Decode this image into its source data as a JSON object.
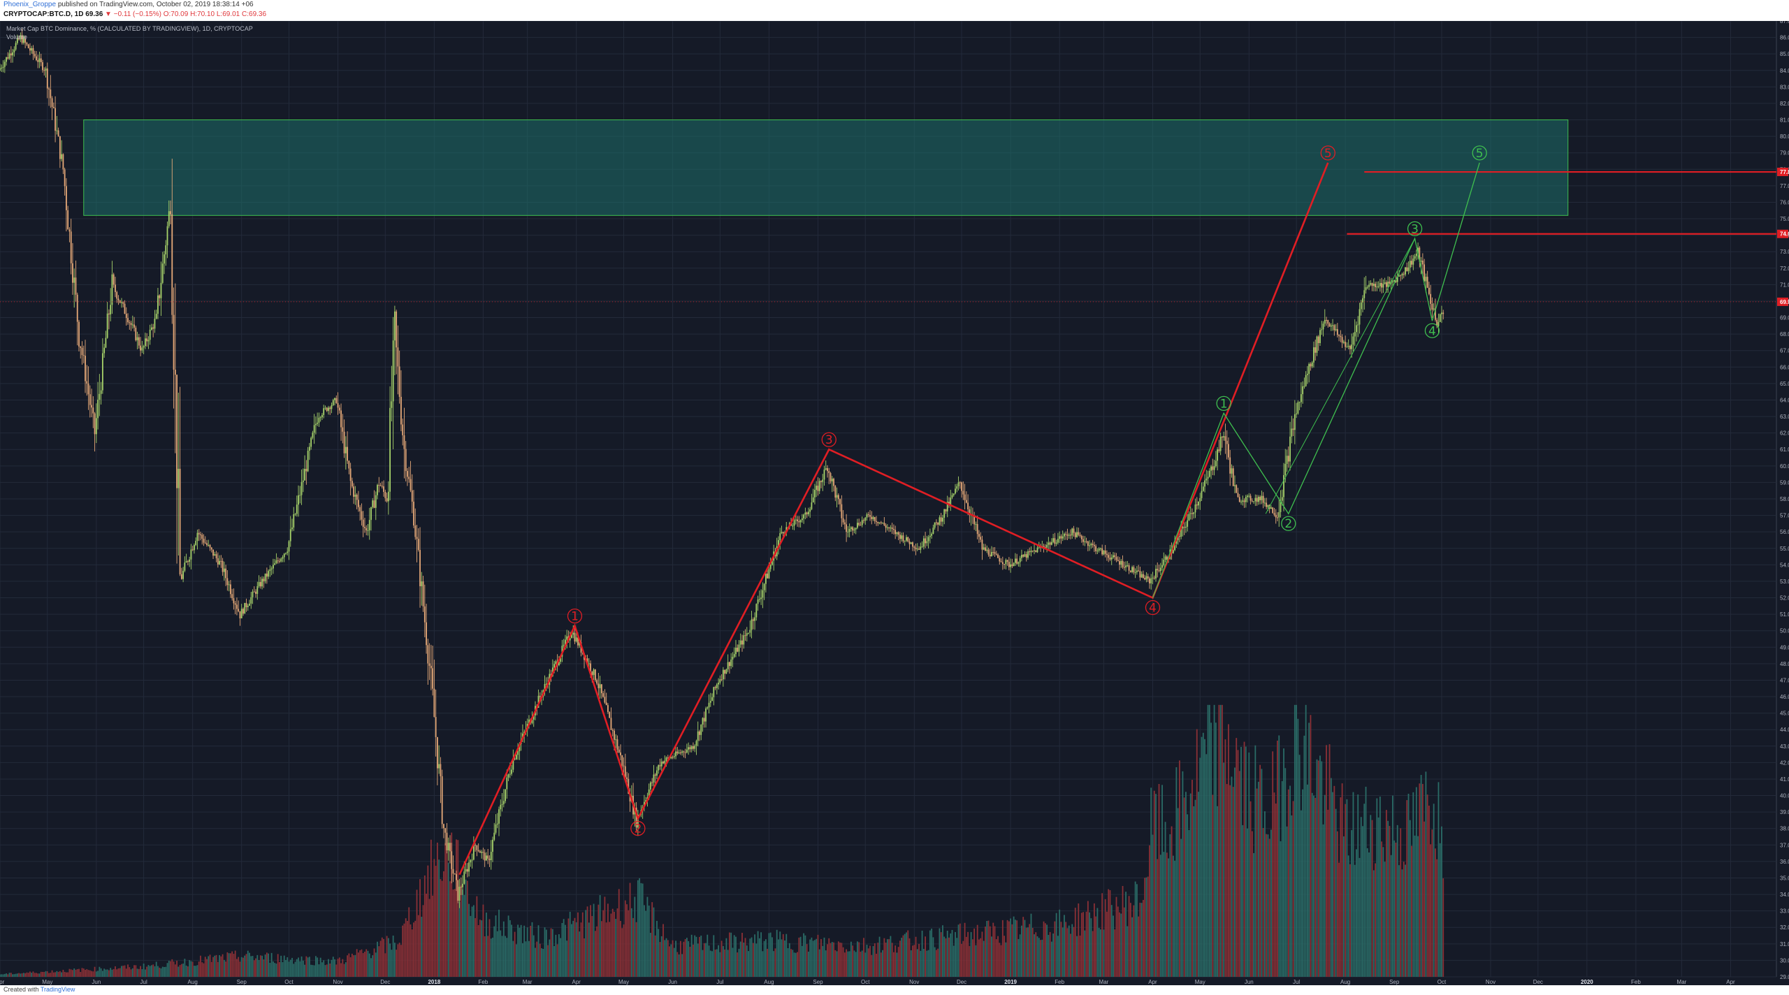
{
  "header": {
    "author": "Phoenix_Groppe",
    "published": "published on TradingView.com, October 02, 2019 18:38:14 +06",
    "symbol": "CRYPTOCAP:BTC.D, 1D",
    "last": "69.36",
    "change": "▼ −0.11 (−0.15%)",
    "ohlc": "O:70.09 H:70.10 L:69.01 C:69.36"
  },
  "legend": {
    "study": "Market Cap BTC Dominance, % (CALCULATED BY TRADINGVIEW), 1D, CRYPTOCAP",
    "volume": "Volume"
  },
  "footer": {
    "created_with": "Created with",
    "brand": "TradingView"
  },
  "colors": {
    "background": "#151a27",
    "grid": "#232a3a",
    "up": "#a7d36a",
    "down": "#e6a978",
    "vol_up": "#2a6b66",
    "vol_down": "#8a3036",
    "zone": "#1d6f6a",
    "red": "#e01e24",
    "green": "#3fbf4f"
  },
  "chart_data": {
    "type": "candlestick",
    "price_ylim": [
      29.0,
      87.0
    ],
    "x_range": [
      "2017-04-01",
      "2020-04-30"
    ],
    "x_ticks": [
      "Apr",
      "May",
      "Jun",
      "Jul",
      "Aug",
      "Sep",
      "Oct",
      "Nov",
      "Dec",
      "2018",
      "Feb",
      "Mar",
      "Apr",
      "May",
      "Jun",
      "Jul",
      "Aug",
      "Sep",
      "Oct",
      "Nov",
      "Dec",
      "2019",
      "Feb",
      "Mar",
      "Apr",
      "May",
      "Jun",
      "Jul",
      "Aug",
      "Sep",
      "Oct",
      "Nov",
      "Dec",
      "2020",
      "Feb",
      "Mar",
      "Apr"
    ],
    "y_ticks": [
      29,
      30,
      31,
      32,
      33,
      34,
      35,
      36,
      37,
      38,
      39,
      40,
      41,
      42,
      43,
      44,
      45,
      46,
      47,
      48,
      49,
      50,
      51,
      52,
      53,
      54,
      55,
      56,
      57,
      58,
      59,
      60,
      61,
      62,
      63,
      64,
      65,
      66,
      67,
      68,
      69,
      70,
      71,
      72,
      73,
      74,
      75,
      76,
      77,
      78,
      79,
      80,
      81,
      82,
      83,
      84,
      85,
      86,
      87
    ],
    "price_labels": [
      {
        "value": 77.84,
        "text": "77.84",
        "color": "#e01e24"
      },
      {
        "value": 74.08,
        "text": "74.08",
        "color": "#e01e24"
      },
      {
        "value": 69.96,
        "text": "69.96",
        "color": "#e01e24"
      }
    ],
    "zone": {
      "from_date": "2017-05-24",
      "to_date": "2019-12-20",
      "low": 75.2,
      "high": 81.0
    },
    "path_anchors": [
      [
        "2017-04-01",
        84
      ],
      [
        "2017-04-15",
        86
      ],
      [
        "2017-05-01",
        84
      ],
      [
        "2017-05-12",
        78
      ],
      [
        "2017-05-22",
        68
      ],
      [
        "2017-06-01",
        62
      ],
      [
        "2017-06-12",
        71
      ],
      [
        "2017-06-22",
        69
      ],
      [
        "2017-07-01",
        67
      ],
      [
        "2017-07-10",
        69
      ],
      [
        "2017-07-19",
        76
      ],
      [
        "2017-07-25",
        53
      ],
      [
        "2017-08-05",
        56
      ],
      [
        "2017-08-20",
        54
      ],
      [
        "2017-09-01",
        51
      ],
      [
        "2017-09-15",
        53
      ],
      [
        "2017-10-01",
        55
      ],
      [
        "2017-10-20",
        63
      ],
      [
        "2017-11-01",
        64
      ],
      [
        "2017-11-10",
        59
      ],
      [
        "2017-11-20",
        56
      ],
      [
        "2017-11-28",
        59
      ],
      [
        "2017-12-03",
        58
      ],
      [
        "2017-12-08",
        68
      ],
      [
        "2017-12-14",
        61
      ],
      [
        "2017-12-20",
        57
      ],
      [
        "2017-12-31",
        47
      ],
      [
        "2018-01-08",
        38
      ],
      [
        "2018-01-17",
        34
      ],
      [
        "2018-01-28",
        37
      ],
      [
        "2018-02-05",
        36
      ],
      [
        "2018-02-20",
        42
      ],
      [
        "2018-03-10",
        46
      ],
      [
        "2018-03-30",
        50
      ],
      [
        "2018-04-15",
        47
      ],
      [
        "2018-05-01",
        42
      ],
      [
        "2018-05-10",
        38.5
      ],
      [
        "2018-05-25",
        42
      ],
      [
        "2018-06-15",
        43
      ],
      [
        "2018-07-01",
        47
      ],
      [
        "2018-07-20",
        50
      ],
      [
        "2018-08-10",
        56
      ],
      [
        "2018-08-25",
        57
      ],
      [
        "2018-09-08",
        60
      ],
      [
        "2018-09-20",
        56
      ],
      [
        "2018-10-05",
        57
      ],
      [
        "2018-10-20",
        56
      ],
      [
        "2018-11-05",
        55
      ],
      [
        "2018-11-20",
        57
      ],
      [
        "2018-12-01",
        59
      ],
      [
        "2018-12-15",
        55
      ],
      [
        "2019-01-01",
        54
      ],
      [
        "2019-01-20",
        55
      ],
      [
        "2019-02-10",
        56
      ],
      [
        "2019-02-25",
        55
      ],
      [
        "2019-03-15",
        54
      ],
      [
        "2019-03-31",
        53
      ],
      [
        "2019-04-15",
        55
      ],
      [
        "2019-05-01",
        58
      ],
      [
        "2019-05-10",
        60
      ],
      [
        "2019-05-17",
        62
      ],
      [
        "2019-05-25",
        58
      ],
      [
        "2019-06-10",
        58
      ],
      [
        "2019-06-20",
        57
      ],
      [
        "2019-07-01",
        63
      ],
      [
        "2019-07-10",
        66
      ],
      [
        "2019-07-20",
        69
      ],
      [
        "2019-08-05",
        67
      ],
      [
        "2019-08-15",
        71
      ],
      [
        "2019-08-30",
        71
      ],
      [
        "2019-09-10",
        72
      ],
      [
        "2019-09-17",
        73
      ],
      [
        "2019-09-25",
        70
      ],
      [
        "2019-09-30",
        68.5
      ],
      [
        "2019-10-02",
        69.36
      ]
    ],
    "volume_anchors": [
      [
        "2017-04-01",
        0.01
      ],
      [
        "2017-06-01",
        0.03
      ],
      [
        "2017-07-01",
        0.04
      ],
      [
        "2017-09-01",
        0.08
      ],
      [
        "2017-11-01",
        0.06
      ],
      [
        "2017-12-10",
        0.14
      ],
      [
        "2017-12-31",
        0.42
      ],
      [
        "2018-01-10",
        0.48
      ],
      [
        "2018-01-31",
        0.22
      ],
      [
        "2018-03-10",
        0.15
      ],
      [
        "2018-05-10",
        0.3
      ],
      [
        "2018-06-01",
        0.12
      ],
      [
        "2018-08-01",
        0.14
      ],
      [
        "2018-10-01",
        0.12
      ],
      [
        "2018-12-01",
        0.16
      ],
      [
        "2019-02-01",
        0.2
      ],
      [
        "2019-03-25",
        0.3
      ],
      [
        "2019-04-01",
        0.6
      ],
      [
        "2019-04-10",
        0.55
      ],
      [
        "2019-05-15",
        0.95
      ],
      [
        "2019-06-01",
        0.7
      ],
      [
        "2019-06-15",
        0.65
      ],
      [
        "2019-07-01",
        0.95
      ],
      [
        "2019-07-10",
        0.85
      ],
      [
        "2019-08-01",
        0.55
      ],
      [
        "2019-08-20",
        0.6
      ],
      [
        "2019-09-10",
        0.55
      ],
      [
        "2019-09-25",
        0.7
      ],
      [
        "2019-10-02",
        0.55
      ]
    ],
    "wave_red": {
      "points": [
        [
          "2018-01-17",
          35.2
        ],
        [
          "2018-03-31",
          50.3
        ],
        [
          "2018-05-10",
          38.6
        ],
        [
          "2018-09-08",
          61.0
        ],
        [
          "2019-04-01",
          52.0
        ],
        [
          "2019-07-21",
          78.4
        ]
      ],
      "labels": [
        "1",
        "2",
        "3",
        "4",
        "5"
      ]
    },
    "wave_green": {
      "points": [
        [
          "2019-04-01",
          52.0
        ],
        [
          "2019-05-16",
          63.2
        ],
        [
          "2019-06-26",
          57.1
        ],
        [
          "2019-09-14",
          73.8
        ],
        [
          "2019-09-25",
          68.8
        ],
        [
          "2019-10-25",
          78.4
        ]
      ],
      "labels": [
        "1",
        "2",
        "3",
        "4",
        "5"
      ]
    },
    "hlines": [
      {
        "value": 77.84,
        "from_date": "2019-08-13"
      },
      {
        "value": 74.08,
        "from_date": "2019-08-02"
      }
    ],
    "current_line": 69.96
  }
}
